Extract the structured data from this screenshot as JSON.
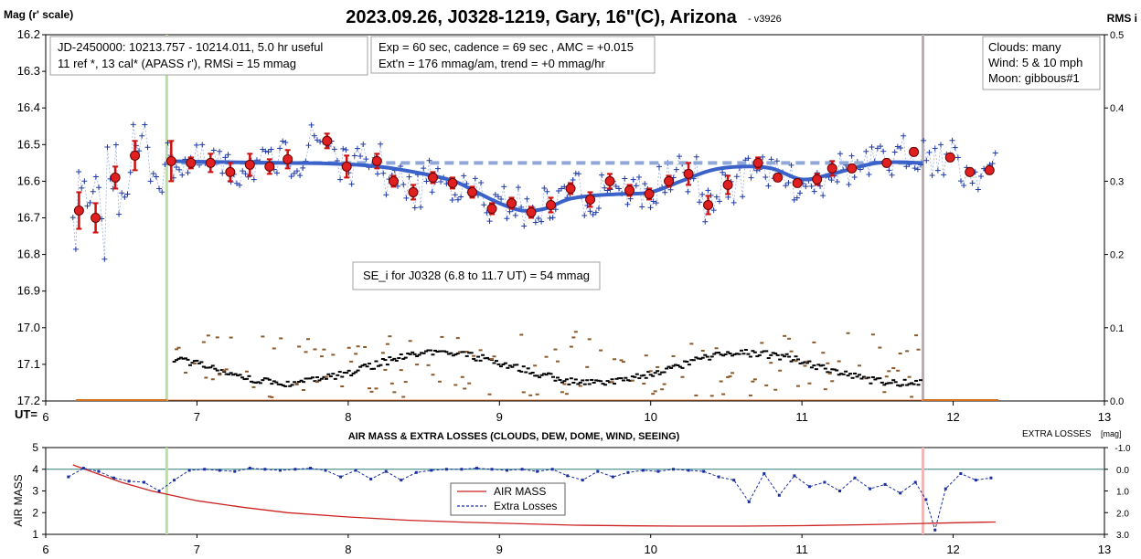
{
  "header": {
    "title": "2023.09.26, J0328-1219, Gary, 16\"(C), Arizona",
    "version": "- v3926",
    "left_axis_label": "Mag (r' scale)",
    "right_axis_label": "RMS i",
    "ut_label": "UT="
  },
  "info_boxes": {
    "jd_line1": "JD-2450000: 10213.757 - 10214.011, 5.0 hr useful",
    "jd_line2": "11 ref *, 13 cal*  (APASS r'), RMSi = 15 mmag",
    "exp_line1": "Exp = 60 sec, cadence = 69 sec , AMC = +0.015",
    "exp_line2": "Ext'n = 176 mmag/am, trend = +0 mmag/hr",
    "clouds": "Clouds: many",
    "wind": "Wind:   5 & 10 mph",
    "moon": "Moon:  gibbous#1",
    "se_note": "SE_i for J0328 (6.8 to 11.7 UT) = 54 mmag"
  },
  "lower_panel": {
    "title": "AIR MASS & EXTRA LOSSES (CLOUDS, DEW, DOME, WIND, SEEING)",
    "right_label": "EXTRA LOSSES",
    "right_label_unit": "[mag]",
    "left_axis_label": "AIR MASS",
    "legend_airmass": "AIR MASS",
    "legend_losses": "Extra Losses"
  },
  "colors": {
    "raw_points": "#1f3aa8",
    "binned_fill": "#e02020",
    "error_bars": "#cc1111",
    "fit_line": "#3a62c8",
    "dashed_ref": "#8fa8d8",
    "rms_black": "#000000",
    "rms_brown": "#8b5a2b",
    "airmass": "#cc2222",
    "losses": "#1a2fa0",
    "green_marker": "#b8e0a0",
    "gray_marker": "#b8b0b0",
    "pink_marker": "#f0b8b8"
  },
  "chart_data": [
    {
      "type": "scatter",
      "panel": "light curve",
      "xlim": [
        6,
        13
      ],
      "ylim": [
        17.2,
        16.2
      ],
      "y2lim": [
        0.0,
        0.5
      ],
      "x_ticks": [
        "6",
        "7",
        "8",
        "9",
        "10",
        "11",
        "12",
        "13"
      ],
      "y_ticks": [
        "16.2",
        "16.3",
        "16.4",
        "16.5",
        "16.6",
        "16.7",
        "16.8",
        "16.9",
        "17.0",
        "17.1",
        "17.2"
      ],
      "y2_ticks": [
        "0.5",
        "0.4",
        "0.3",
        "0.2",
        "0.1",
        "0.0"
      ],
      "markers_ut": {
        "green_start": 6.8,
        "gray_end": 11.8
      },
      "reference_mag": 16.55,
      "reference_range": [
        6.8,
        11.8
      ],
      "binned": {
        "ut": [
          6.22,
          6.33,
          6.46,
          6.59,
          6.83,
          6.96,
          7.09,
          7.22,
          7.35,
          7.48,
          7.6,
          7.86,
          7.99,
          8.19,
          8.3,
          8.43,
          8.56,
          8.69,
          8.82,
          8.95,
          9.08,
          9.21,
          9.34,
          9.47,
          9.6,
          9.73,
          9.86,
          9.99,
          10.12,
          10.25,
          10.38,
          10.51,
          10.71,
          10.84,
          10.97,
          11.1,
          11.2,
          11.33,
          11.56,
          11.74,
          11.98,
          12.11,
          12.24
        ],
        "mag": [
          16.68,
          16.7,
          16.59,
          16.53,
          16.545,
          16.55,
          16.55,
          16.575,
          16.555,
          16.56,
          16.54,
          16.49,
          16.56,
          16.545,
          16.6,
          16.63,
          16.59,
          16.605,
          16.63,
          16.675,
          16.66,
          16.685,
          16.665,
          16.62,
          16.65,
          16.6,
          16.625,
          16.635,
          16.6,
          16.58,
          16.665,
          16.61,
          16.55,
          16.59,
          16.605,
          16.595,
          16.565,
          16.565,
          16.55,
          16.52,
          16.535,
          16.575,
          16.57
        ],
        "err": [
          0.05,
          0.04,
          0.03,
          0.04,
          0.055,
          0.015,
          0.025,
          0.025,
          0.03,
          0.02,
          0.025,
          0.02,
          0.03,
          0.02,
          0.015,
          0.02,
          0.015,
          0.015,
          0.015,
          0.015,
          0.015,
          0.015,
          0.02,
          0.015,
          0.02,
          0.02,
          0.015,
          0.015,
          0.015,
          0.03,
          0.025,
          0.025,
          0.015,
          0.01,
          0.01,
          0.015,
          0.02,
          0.01,
          0.01,
          0.01,
          0.01,
          0.01,
          0.01
        ]
      },
      "fit": {
        "ut": [
          6.8,
          7.2,
          7.6,
          7.9,
          8.2,
          8.5,
          8.7,
          8.85,
          9.0,
          9.15,
          9.3,
          9.45,
          9.6,
          9.8,
          10.0,
          10.2,
          10.4,
          10.6,
          10.8,
          11.0,
          11.2,
          11.5,
          11.8
        ],
        "mag": [
          16.545,
          16.548,
          16.55,
          16.552,
          16.56,
          16.58,
          16.6,
          16.63,
          16.66,
          16.68,
          16.675,
          16.65,
          16.64,
          16.635,
          16.63,
          16.6,
          16.57,
          16.56,
          16.565,
          16.595,
          16.58,
          16.55,
          16.55
        ]
      }
    },
    {
      "type": "line",
      "panel": "air mass & extra losses",
      "xlim": [
        6,
        13
      ],
      "ylim": [
        1,
        5
      ],
      "y2lim": [
        3.0,
        -1.0
      ],
      "x_ticks": [
        "6",
        "7",
        "8",
        "9",
        "10",
        "11",
        "12",
        "13"
      ],
      "y_ticks": [
        "5",
        "4",
        "3",
        "2",
        "1"
      ],
      "y2_ticks": [
        "-1.0",
        "0.0",
        "1.0",
        "2.0",
        "3.0"
      ],
      "markers_ut": {
        "green": 6.8,
        "pink": 11.8
      },
      "series": [
        {
          "name": "AIR MASS",
          "x": [
            6.18,
            6.3,
            6.5,
            6.7,
            7.0,
            7.3,
            7.6,
            8.0,
            8.4,
            8.8,
            9.2,
            9.5,
            9.9,
            10.2,
            10.6,
            11.0,
            11.4,
            11.8,
            12.2,
            12.28
          ],
          "y": [
            4.2,
            3.9,
            3.4,
            3.0,
            2.55,
            2.25,
            2.0,
            1.8,
            1.65,
            1.55,
            1.48,
            1.42,
            1.39,
            1.38,
            1.38,
            1.4,
            1.44,
            1.5,
            1.56,
            1.57
          ]
        },
        {
          "name": "Extra Losses",
          "x": [
            6.15,
            6.25,
            6.35,
            6.45,
            6.55,
            6.65,
            6.75,
            6.85,
            6.95,
            7.05,
            7.15,
            7.25,
            7.35,
            7.45,
            7.55,
            7.65,
            7.75,
            7.85,
            7.95,
            8.05,
            8.15,
            8.25,
            8.35,
            8.45,
            8.55,
            8.65,
            8.75,
            8.85,
            8.95,
            9.05,
            9.15,
            9.25,
            9.35,
            9.45,
            9.55,
            9.65,
            9.75,
            9.85,
            9.95,
            10.05,
            10.15,
            10.25,
            10.35,
            10.45,
            10.55,
            10.65,
            10.75,
            10.85,
            10.95,
            11.05,
            11.15,
            11.25,
            11.35,
            11.45,
            11.55,
            11.65,
            11.75,
            11.82,
            11.88,
            11.95,
            12.05,
            12.15,
            12.25
          ],
          "y": [
            0.35,
            -0.05,
            0.1,
            0.4,
            0.55,
            0.6,
            1.0,
            0.5,
            0.05,
            0.0,
            0.05,
            0.1,
            -0.05,
            0.0,
            0.05,
            0.0,
            -0.05,
            0.05,
            0.35,
            0.05,
            0.45,
            0.1,
            0.5,
            0.15,
            0.05,
            0.0,
            0.0,
            -0.05,
            0.0,
            0.05,
            0.0,
            0.1,
            0.0,
            0.3,
            0.5,
            0.1,
            0.35,
            0.15,
            0.05,
            0.1,
            0.0,
            0.05,
            0.1,
            0.35,
            0.5,
            1.5,
            0.2,
            1.2,
            0.3,
            0.8,
            0.6,
            1.0,
            0.4,
            0.9,
            0.7,
            1.1,
            0.6,
            1.4,
            2.8,
            0.9,
            0.2,
            0.5,
            0.4
          ]
        }
      ]
    }
  ]
}
